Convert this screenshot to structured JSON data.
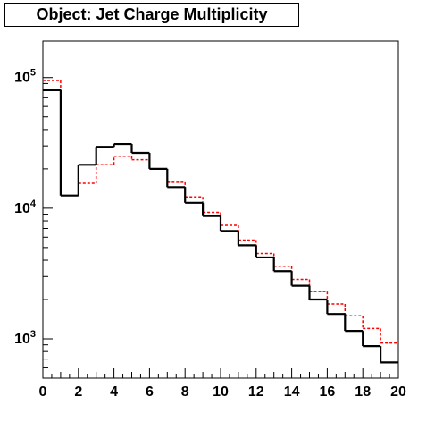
{
  "title": "Object: Jet Charge Multiplicity",
  "colors": {
    "black_series": "#000000",
    "red_series": "#ff0000",
    "frame": "#000000"
  },
  "chart_data": {
    "type": "histogram",
    "title": "Object: Jet Charge Multiplicity",
    "xlabel": "",
    "ylabel": "",
    "xlim": [
      0,
      20
    ],
    "ylim": [
      500,
      190000
    ],
    "yscale": "log",
    "grid": false,
    "bin_edges": [
      0,
      1,
      2,
      3,
      4,
      5,
      6,
      7,
      8,
      9,
      10,
      11,
      12,
      13,
      14,
      15,
      16,
      17,
      18,
      19,
      20
    ],
    "x_ticks": [
      "0",
      "2",
      "4",
      "6",
      "8",
      "10",
      "12",
      "14",
      "16",
      "18",
      "20"
    ],
    "y_ticks": [
      {
        "value": 1000,
        "base": "10",
        "exp": "3"
      },
      {
        "value": 10000,
        "base": "10",
        "exp": "4"
      },
      {
        "value": 100000,
        "base": "10",
        "exp": "5"
      }
    ],
    "series": [
      {
        "color": "#000000",
        "style": "solid",
        "values": [
          80000,
          12500,
          21500,
          29500,
          31000,
          26500,
          20000,
          14500,
          11000,
          8700,
          6700,
          5200,
          4200,
          3300,
          2550,
          2000,
          1550,
          1150,
          880,
          660
        ]
      },
      {
        "color": "#ff0000",
        "style": "dashed",
        "values": [
          95000,
          12500,
          15500,
          21500,
          25000,
          23500,
          20000,
          15800,
          12200,
          9300,
          7400,
          5700,
          4500,
          3600,
          2850,
          2300,
          1850,
          1500,
          1200,
          930
        ]
      }
    ]
  }
}
